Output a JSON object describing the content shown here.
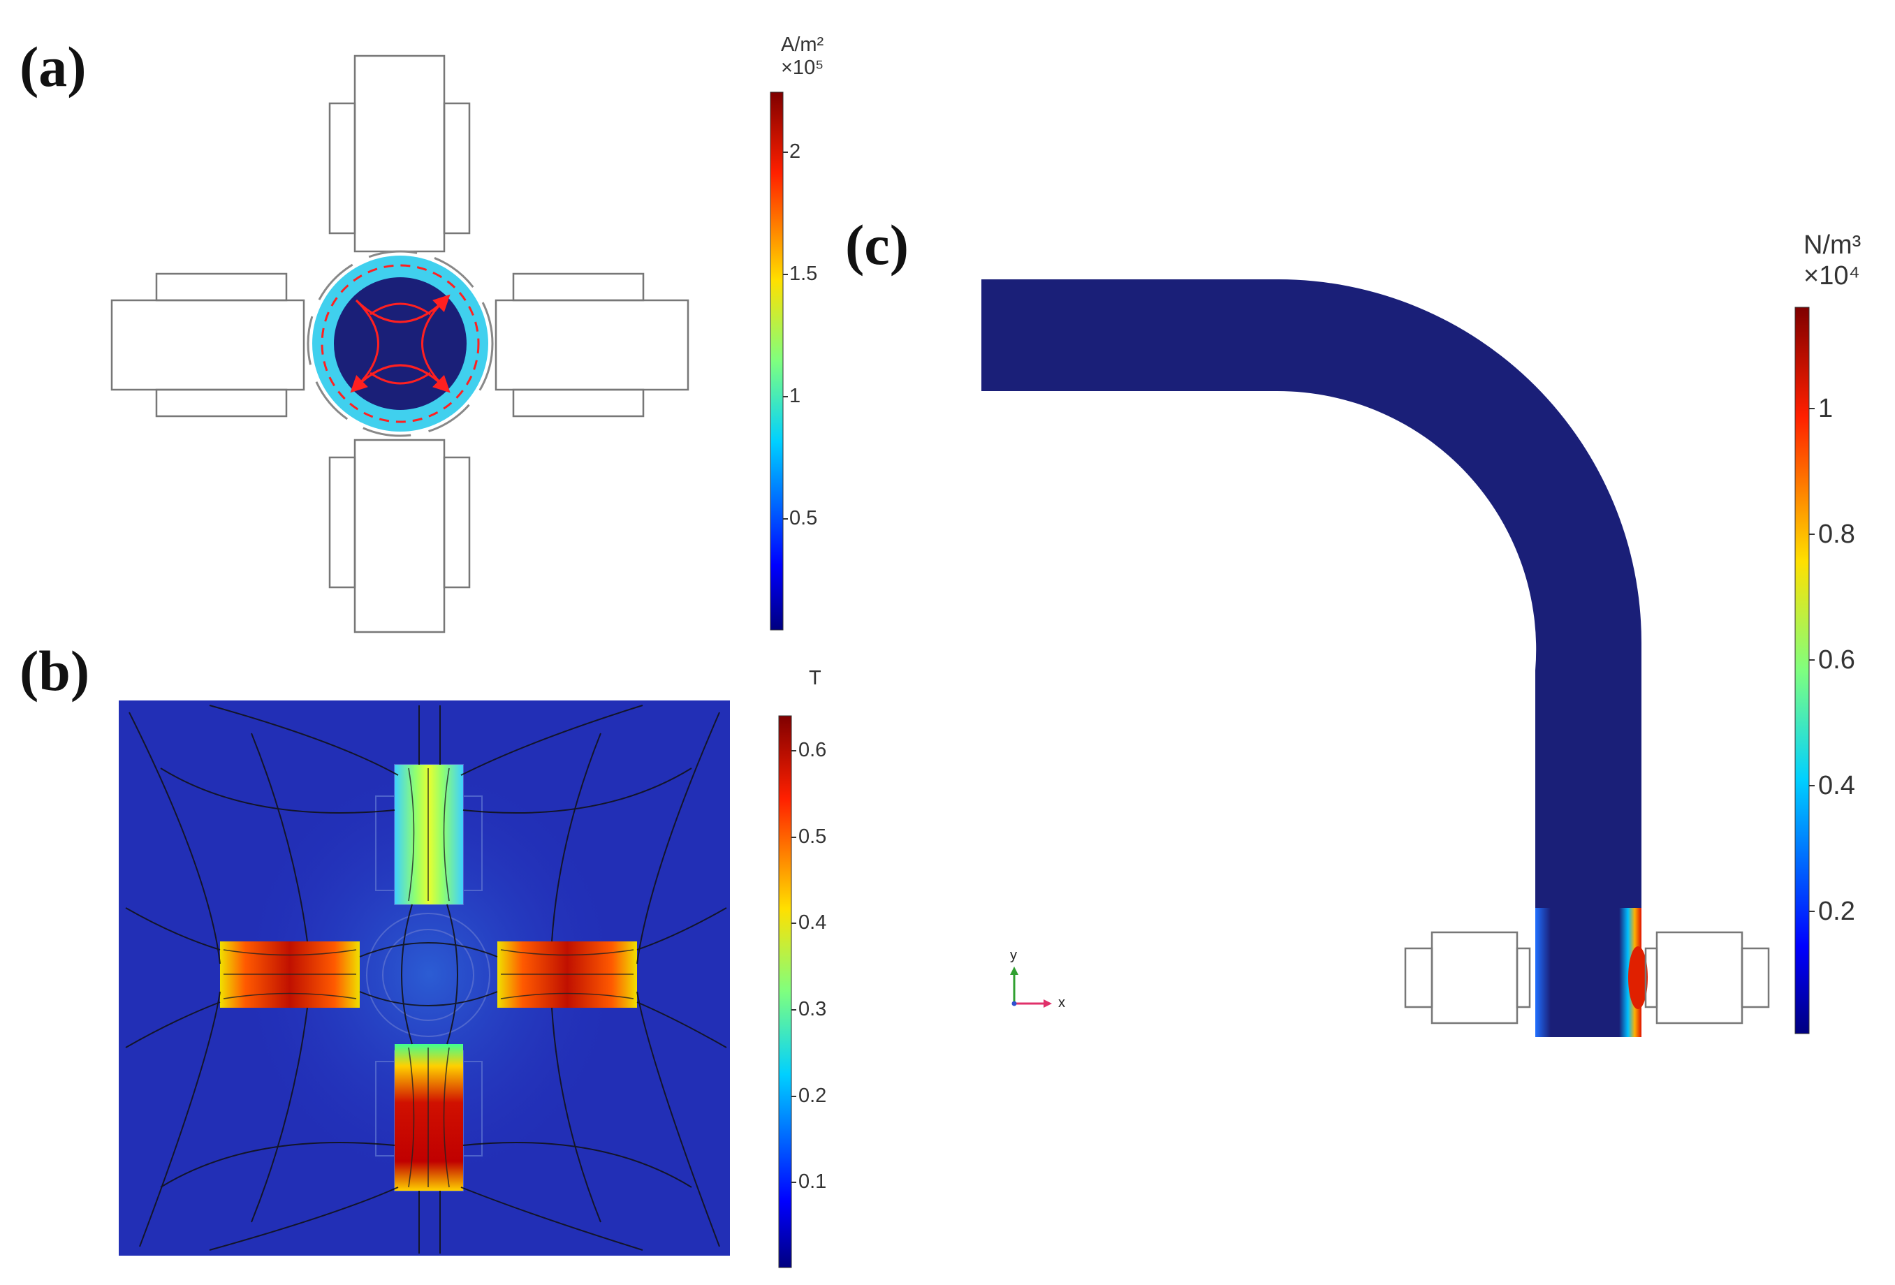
{
  "panel_a": {
    "label": "(a)",
    "colorbar": {
      "unit": "A/m²",
      "scale": "×10⁵",
      "colormap": "jet",
      "ticks": [
        "2",
        "1.5",
        "1",
        "0.5"
      ],
      "min": 0,
      "max": 2.2
    }
  },
  "panel_b": {
    "label": "(b)",
    "colorbar": {
      "unit": "T",
      "colormap": "jet",
      "ticks": [
        "0.6",
        "0.5",
        "0.4",
        "0.3",
        "0.2",
        "0.1"
      ],
      "min": 0,
      "max": 0.65
    }
  },
  "panel_c": {
    "label": "(c)",
    "colorbar": {
      "unit": "N/m³",
      "scale": "×10⁴",
      "colormap": "jet",
      "ticks": [
        "1",
        "0.8",
        "0.6",
        "0.4",
        "0.2"
      ],
      "min": 0,
      "max": 1.15
    },
    "axes_triad": {
      "y": "y",
      "x": "x"
    }
  },
  "colors": {
    "background": "#ffffff",
    "field_dark": "#1a1f78",
    "jet_low": "#0a0a82",
    "jet_high": "#800000"
  }
}
